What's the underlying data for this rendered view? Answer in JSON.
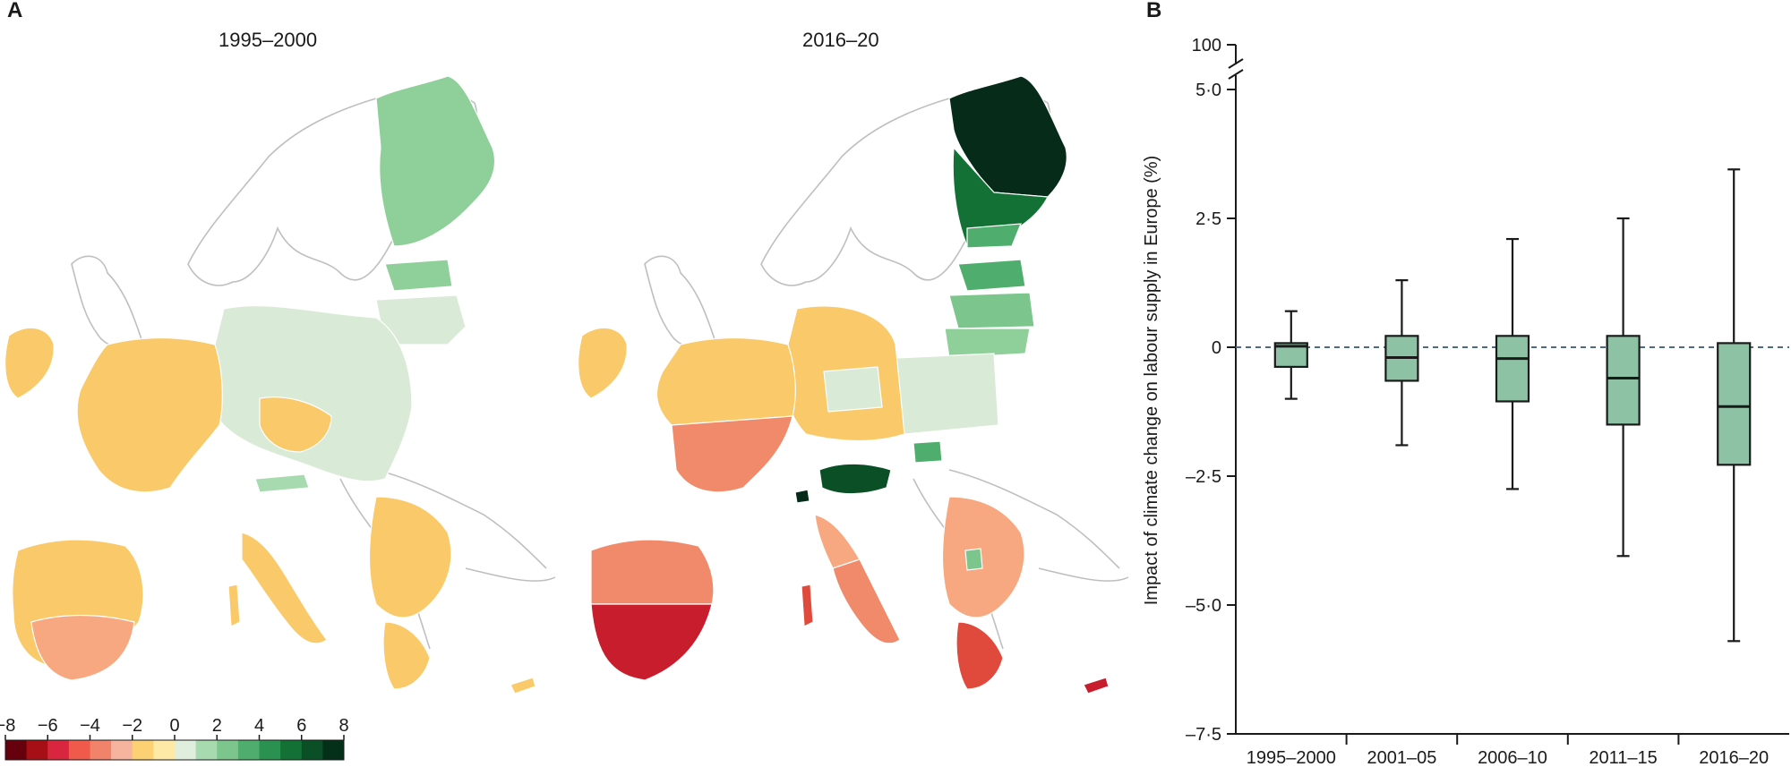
{
  "panel_a": {
    "letter": "A",
    "maps": [
      {
        "title": "1995–2000"
      },
      {
        "title": "2016–20"
      }
    ],
    "colorbar": {
      "ticks": [
        "−8",
        "−6",
        "−4",
        "−2",
        "0",
        "2",
        "4",
        "6",
        "8"
      ],
      "colors": [
        "#67000d",
        "#a50f15",
        "#d7263d",
        "#ef5a4a",
        "#f2836b",
        "#f6b49e",
        "#fcd174",
        "#fee9a6",
        "#dfeedd",
        "#a8dab0",
        "#7cc68e",
        "#4fae6d",
        "#2b9151",
        "#137136",
        "#0a4f26",
        "#04301a"
      ]
    },
    "region_colors": {
      "land_outline": "#bfbfbf",
      "light_green": "#d9ead6",
      "mid_green": "#8fcf9a",
      "green": "#4fae6d",
      "dark_green": "#137136",
      "darkest_green": "#062b18",
      "yellow": "#f9c96a",
      "orange": "#f7a880",
      "salmon": "#f08a6a",
      "red": "#e04a3c",
      "dark_red": "#c81d2c"
    }
  },
  "panel_b": {
    "letter": "B"
  },
  "chart_data": {
    "type": "box",
    "title": "",
    "xlabel": "",
    "ylabel": "Impact of climate change on labour supply in Europe (%)",
    "ylim": [
      -7.5,
      5.0
    ],
    "y_axis_break_label": "100",
    "yticks": [
      {
        "value": 5.0,
        "label": "5·0"
      },
      {
        "value": 2.5,
        "label": "2·5"
      },
      {
        "value": 0,
        "label": "0"
      },
      {
        "value": -2.5,
        "label": "–2·5"
      },
      {
        "value": -5.0,
        "label": "–5·0"
      },
      {
        "value": -7.5,
        "label": "–7·5"
      }
    ],
    "reference_line": {
      "value": 0,
      "style": "dashed",
      "color": "#4a6a88"
    },
    "box_color": "#8ec2a5",
    "boxes": [
      {
        "label": "1995–2000",
        "min": -1.0,
        "q1": -0.38,
        "median": 0.02,
        "q3": 0.08,
        "max": 0.7
      },
      {
        "label": "2001–05",
        "min": -1.9,
        "q1": -0.65,
        "median": -0.2,
        "q3": 0.22,
        "max": 1.3
      },
      {
        "label": "2006–10",
        "min": -2.75,
        "q1": -1.05,
        "median": -0.22,
        "q3": 0.22,
        "max": 2.1
      },
      {
        "label": "2011–15",
        "min": -4.05,
        "q1": -1.5,
        "median": -0.6,
        "q3": 0.22,
        "max": 2.5
      },
      {
        "label": "2016–20",
        "min": -5.7,
        "q1": -2.28,
        "median": -1.15,
        "q3": 0.08,
        "max": 3.45
      }
    ]
  }
}
